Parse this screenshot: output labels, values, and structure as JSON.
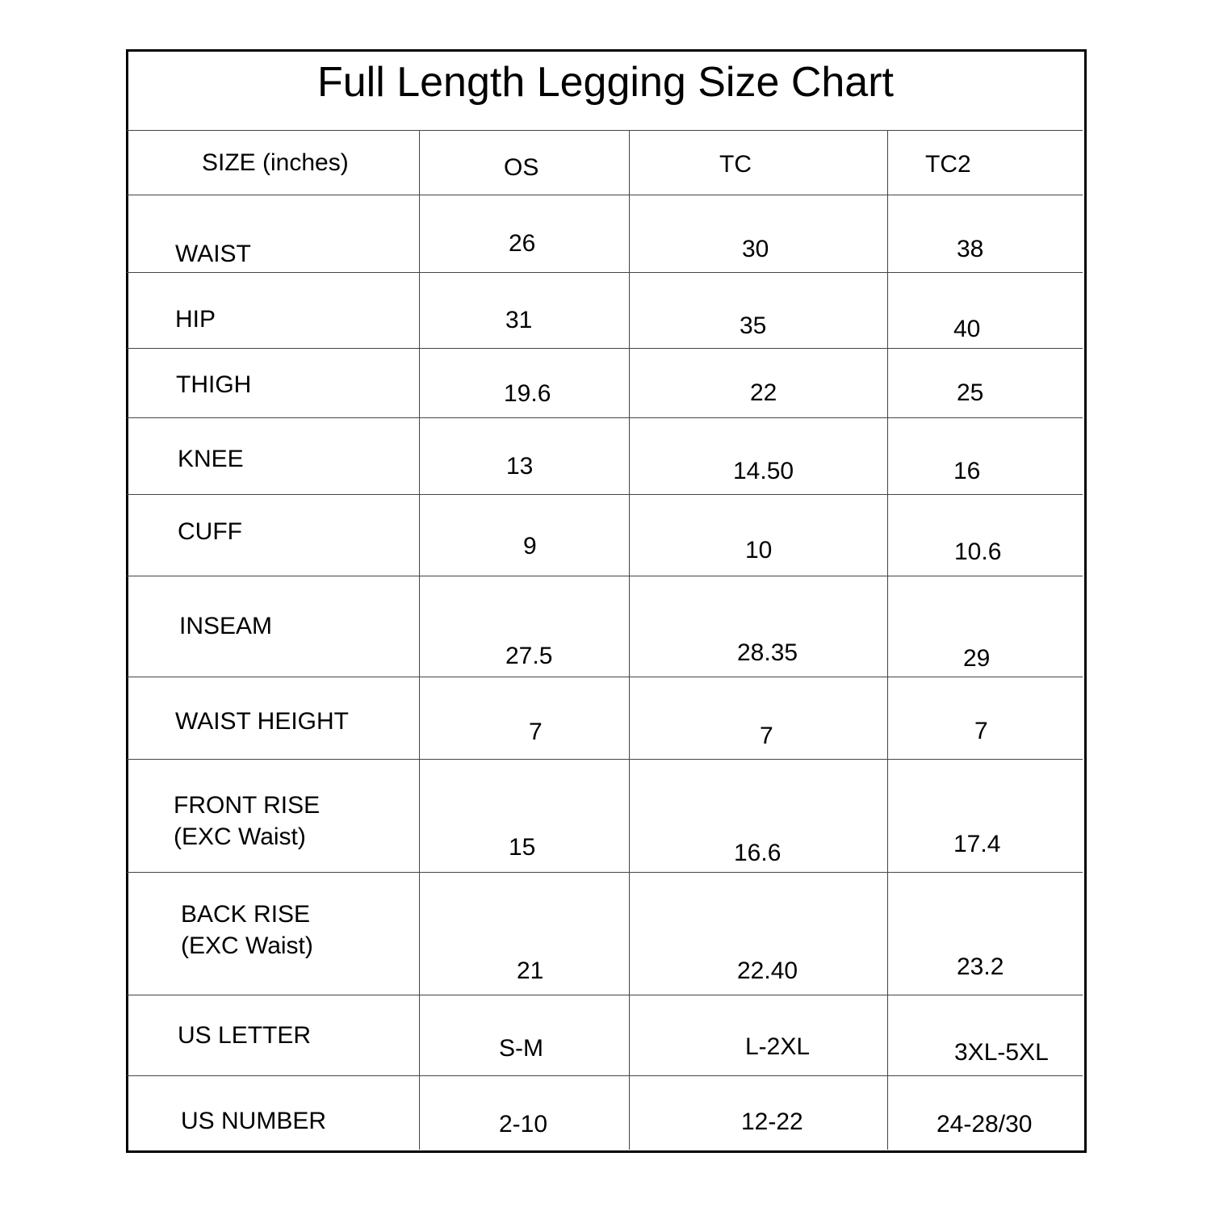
{
  "title": "Full Length Legging Size Chart",
  "header": {
    "label": "SIZE (inches)",
    "sizes": [
      "OS",
      "TC",
      "TC2"
    ]
  },
  "rows": [
    {
      "label": "WAIST",
      "values": [
        "26",
        "30",
        "38"
      ]
    },
    {
      "label": "HIP",
      "values": [
        "31",
        "35",
        "40"
      ]
    },
    {
      "label": "THIGH",
      "values": [
        "19.6",
        "22",
        "25"
      ]
    },
    {
      "label": "KNEE",
      "values": [
        "13",
        "14.50",
        "16"
      ]
    },
    {
      "label": "CUFF",
      "values": [
        "9",
        "10",
        "10.6"
      ]
    },
    {
      "label": "INSEAM",
      "values": [
        "27.5",
        "28.35",
        "29"
      ]
    },
    {
      "label": "WAIST HEIGHT",
      "values": [
        "7",
        "7",
        "7"
      ]
    },
    {
      "label": "FRONT RISE\n(EXC Waist)",
      "values": [
        "15",
        "16.6",
        "17.4"
      ]
    },
    {
      "label": "BACK RISE\n(EXC Waist)",
      "values": [
        "21",
        "22.40",
        "23.2"
      ]
    },
    {
      "label": "US LETTER",
      "values": [
        "S-M",
        "L-2XL",
        "3XL-5XL"
      ]
    },
    {
      "label": "US NUMBER",
      "values": [
        "2-10",
        "12-22",
        "24-28/30"
      ]
    }
  ]
}
